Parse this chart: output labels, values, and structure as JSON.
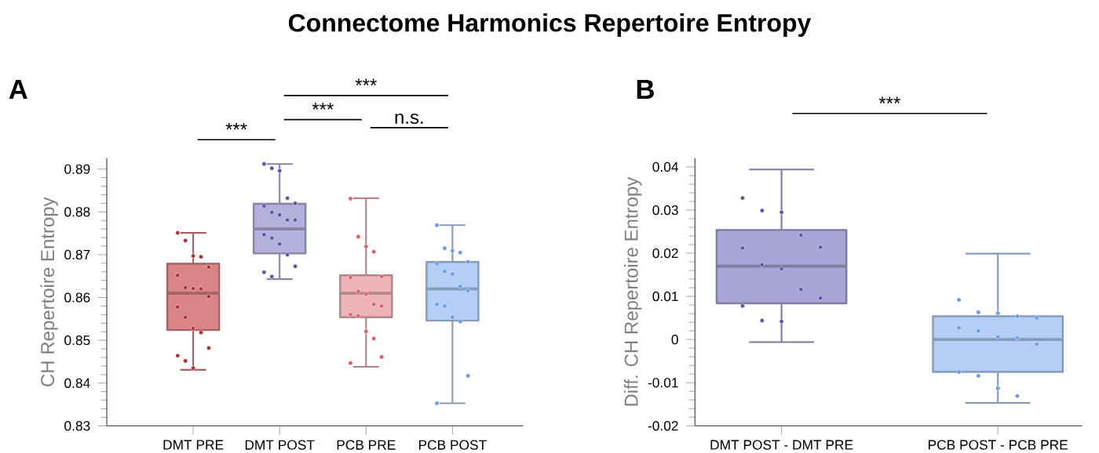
{
  "chart_data": [
    {
      "type": "box",
      "title": "Connectome Harmonics Repertoire Entropy",
      "subtitle": "A",
      "ylabel": "CH Repertoire Entropy",
      "categories": [
        "DMT PRE",
        "DMT POST",
        "PCB PRE",
        "PCB POST"
      ],
      "colors": [
        "#d98487",
        "#b4b0dc",
        "#eeb3b5",
        "#b3cff5"
      ],
      "boxes": [
        {
          "low": 0.8431,
          "q1": 0.8524,
          "median": 0.861,
          "q3": 0.8679,
          "high": 0.8751
        },
        {
          "low": 0.8643,
          "q1": 0.8703,
          "median": 0.876,
          "q3": 0.8819,
          "high": 0.8912
        },
        {
          "low": 0.8438,
          "q1": 0.8554,
          "median": 0.861,
          "q3": 0.8652,
          "high": 0.8832
        },
        {
          "low": 0.8353,
          "q1": 0.8546,
          "median": 0.862,
          "q3": 0.8683,
          "high": 0.8769
        }
      ],
      "series": [
        {
          "type": "scatter",
          "color": "#b0303a",
          "x": [
            "DMT PRE",
            "DMT PRE",
            "DMT PRE",
            "DMT PRE",
            "DMT PRE",
            "DMT PRE",
            "DMT PRE",
            "DMT PRE",
            "DMT PRE",
            "DMT PRE",
            "DMT PRE",
            "DMT PRE",
            "DMT PRE",
            "DMT PRE",
            "DMT PRE",
            "DMT PRE",
            "DMT PRE",
            "DMT PRE"
          ],
          "values": [
            0.8751,
            0.8733,
            0.8697,
            0.8695,
            0.8671,
            0.8652,
            0.8623,
            0.8621,
            0.862,
            0.8602,
            0.8578,
            0.8554,
            0.8528,
            0.8518,
            0.8482,
            0.8464,
            0.8452,
            0.8435
          ]
        },
        {
          "type": "scatter",
          "color": "#5a55a8",
          "x": [
            "DMT POST",
            "DMT POST",
            "DMT POST",
            "DMT POST",
            "DMT POST",
            "DMT POST",
            "DMT POST",
            "DMT POST",
            "DMT POST",
            "DMT POST",
            "DMT POST",
            "DMT POST",
            "DMT POST",
            "DMT POST",
            "DMT POST",
            "DMT POST",
            "DMT POST"
          ],
          "values": [
            0.8912,
            0.8902,
            0.8896,
            0.8832,
            0.882,
            0.8814,
            0.8799,
            0.8793,
            0.8781,
            0.8781,
            0.8747,
            0.8739,
            0.8725,
            0.87,
            0.8673,
            0.8659,
            0.8649
          ]
        },
        {
          "type": "scatter",
          "color": "#d8606a",
          "x": [
            "PCB PRE",
            "PCB PRE",
            "PCB PRE",
            "PCB PRE",
            "PCB PRE",
            "PCB PRE",
            "PCB PRE",
            "PCB PRE",
            "PCB PRE",
            "PCB PRE",
            "PCB PRE",
            "PCB PRE",
            "PCB PRE",
            "PCB PRE",
            "PCB PRE",
            "PCB PRE"
          ],
          "values": [
            0.8831,
            0.8742,
            0.8719,
            0.8707,
            0.8649,
            0.8647,
            0.8614,
            0.8608,
            0.8584,
            0.858,
            0.856,
            0.8557,
            0.8521,
            0.8504,
            0.8461,
            0.8447
          ]
        },
        {
          "type": "scatter",
          "color": "#6a9ae8",
          "x": [
            "PCB POST",
            "PCB POST",
            "PCB POST",
            "PCB POST",
            "PCB POST",
            "PCB POST",
            "PCB POST",
            "PCB POST",
            "PCB POST",
            "PCB POST",
            "PCB POST",
            "PCB POST",
            "PCB POST",
            "PCB POST",
            "PCB POST",
            "PCB POST"
          ],
          "values": [
            0.8769,
            0.8715,
            0.8709,
            0.8705,
            0.8683,
            0.8679,
            0.8661,
            0.8655,
            0.8626,
            0.8616,
            0.8584,
            0.858,
            0.8554,
            0.8544,
            0.8417,
            0.8353
          ]
        }
      ],
      "marker": "circle",
      "ylim": [
        0.83,
        0.8925
      ],
      "yticks": [
        0.83,
        0.84,
        0.85,
        0.86,
        0.87,
        0.88,
        0.89
      ],
      "annotations": [
        "***",
        "***",
        "n.s.",
        "***"
      ]
    },
    {
      "type": "box",
      "title": "B",
      "ylabel": "Diff. CH Repertoire Entropy",
      "categories": [
        "DMT POST - DMT PRE",
        "PCB POST - PCB PRE"
      ],
      "colors": [
        "#a8a4d6",
        "#b3cff5"
      ],
      "boxes": [
        {
          "low": -0.0006,
          "q1": 0.0084,
          "median": 0.017,
          "q3": 0.0254,
          "high": 0.0394
        },
        {
          "low": -0.0147,
          "q1": -0.0075,
          "median": 0.0,
          "q3": 0.0054,
          "high": 0.0199
        }
      ],
      "series": [
        {
          "type": "scatter",
          "color": "#5a55a8",
          "x": [
            "DMT POST - DMT PRE",
            "DMT POST - DMT PRE",
            "DMT POST - DMT PRE",
            "DMT POST - DMT PRE",
            "DMT POST - DMT PRE",
            "DMT POST - DMT PRE",
            "DMT POST - DMT PRE",
            "DMT POST - DMT PRE",
            "DMT POST - DMT PRE",
            "DMT POST - DMT PRE",
            "DMT POST - DMT PRE",
            "DMT POST - DMT PRE",
            "DMT POST - DMT PRE"
          ],
          "values": [
            0.0328,
            0.0299,
            0.0295,
            0.0242,
            0.0214,
            0.0212,
            0.0173,
            0.0164,
            0.0116,
            0.0096,
            0.0078,
            0.0044,
            0.0042
          ]
        },
        {
          "type": "scatter",
          "color": "#6a9ae8",
          "x": [
            "PCB POST - PCB PRE",
            "PCB POST - PCB PRE",
            "PCB POST - PCB PRE",
            "PCB POST - PCB PRE",
            "PCB POST - PCB PRE",
            "PCB POST - PCB PRE",
            "PCB POST - PCB PRE",
            "PCB POST - PCB PRE",
            "PCB POST - PCB PRE",
            "PCB POST - PCB PRE",
            "PCB POST - PCB PRE",
            "PCB POST - PCB PRE",
            "PCB POST - PCB PRE",
            "PCB POST - PCB PRE"
          ],
          "values": [
            0.0092,
            0.0063,
            0.0061,
            0.0054,
            0.005,
            0.0027,
            0.002,
            0.0006,
            0.0004,
            -0.0011,
            -0.0075,
            -0.0084,
            -0.0113,
            -0.0131
          ]
        }
      ],
      "marker": "circle",
      "ylim": [
        -0.02,
        0.042
      ],
      "yticks": [
        -0.02,
        -0.01,
        0,
        0.01,
        0.02,
        0.03,
        0.04
      ],
      "annotations": [
        "***"
      ]
    }
  ]
}
